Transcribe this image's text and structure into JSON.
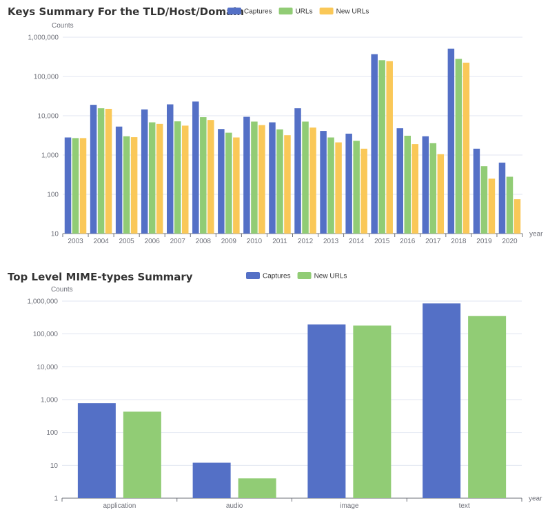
{
  "chart_data": [
    {
      "type": "bar",
      "title": "Keys Summary For the TLD/Host/Domain",
      "ylabel": "Counts",
      "xlabel": "year",
      "yscale": "log",
      "ylim": [
        10,
        1000000
      ],
      "yticks": [
        "10",
        "100",
        "1,000",
        "10,000",
        "100,000",
        "1,000,000"
      ],
      "legend_position": "top",
      "grid": true,
      "categories": [
        "2003",
        "2004",
        "2005",
        "2006",
        "2007",
        "2008",
        "2009",
        "2010",
        "2011",
        "2012",
        "2013",
        "2014",
        "2015",
        "2016",
        "2017",
        "2018",
        "2019",
        "2020"
      ],
      "series": [
        {
          "name": "Captures",
          "color": "#5470c6",
          "values": [
            2800,
            19000,
            5300,
            14500,
            19500,
            23000,
            4600,
            9400,
            6800,
            15500,
            4100,
            3500,
            370000,
            4800,
            3000,
            510000,
            1450,
            640
          ]
        },
        {
          "name": "URLs",
          "color": "#91cc75",
          "values": [
            2700,
            15500,
            3000,
            6800,
            7200,
            9200,
            3700,
            7100,
            4500,
            7100,
            2800,
            2300,
            260000,
            3100,
            2000,
            280000,
            520,
            280
          ]
        },
        {
          "name": "New URLs",
          "color": "#fac858",
          "values": [
            2700,
            15000,
            2850,
            6200,
            5600,
            7800,
            2800,
            5800,
            3200,
            5000,
            2100,
            1450,
            245000,
            1900,
            1050,
            225000,
            250,
            75
          ]
        }
      ]
    },
    {
      "type": "bar",
      "title": "Top Level MIME-types Summary",
      "ylabel": "Counts",
      "xlabel": "year",
      "yscale": "log",
      "ylim": [
        1,
        1000000
      ],
      "yticks": [
        "1",
        "10",
        "100",
        "1,000",
        "10,000",
        "100,000",
        "1,000,000"
      ],
      "legend_position": "top",
      "grid": true,
      "categories": [
        "application",
        "audio",
        "image",
        "text"
      ],
      "series": [
        {
          "name": "Captures",
          "color": "#5470c6",
          "values": [
            780,
            12,
            195000,
            850000
          ]
        },
        {
          "name": "New URLs",
          "color": "#91cc75",
          "values": [
            430,
            4,
            180000,
            350000
          ]
        }
      ]
    }
  ]
}
